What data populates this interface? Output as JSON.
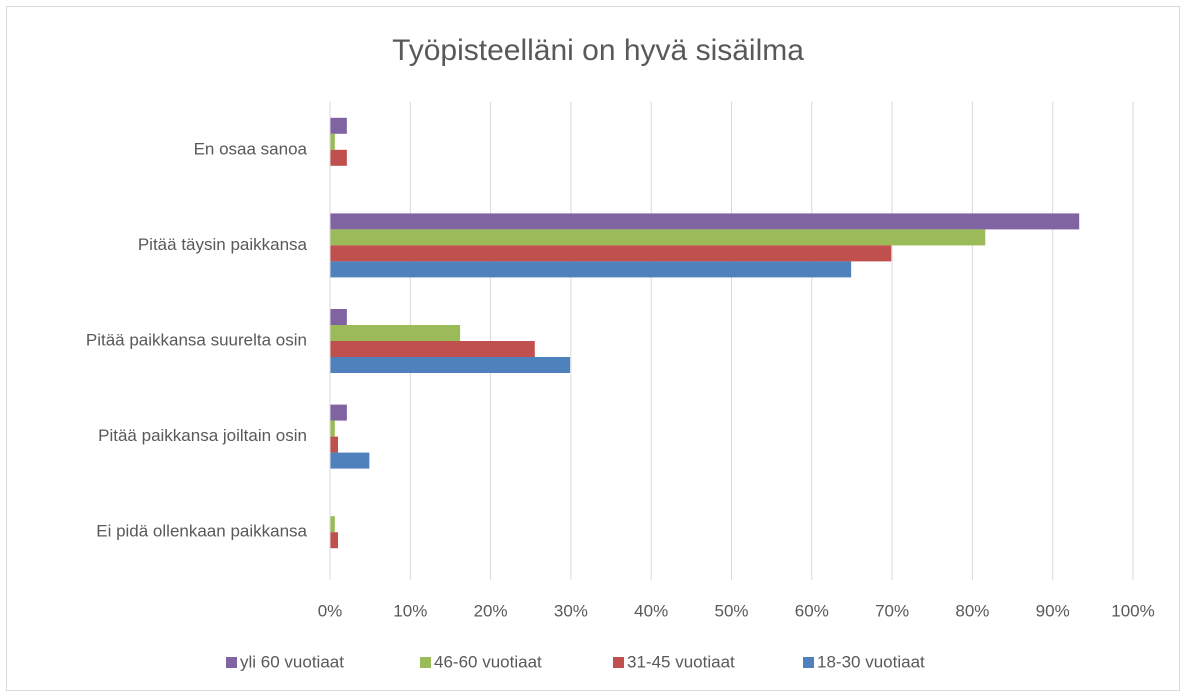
{
  "chart_data": {
    "type": "bar",
    "orientation": "horizontal",
    "title": "Työpisteelläni on hyvä sisäilma",
    "categories": [
      "En osaa sanoa",
      "Pitää täysin paikkansa",
      "Pitää paikkansa suurelta osin",
      "Pitää paikkansa joiltain osin",
      "Ei pidä ollenkaan paikkansa"
    ],
    "series": [
      {
        "name": "yli 60 vuotiaat",
        "color": "#8064a2",
        "values": [
          2.1,
          93.3,
          2.1,
          2.1,
          0
        ]
      },
      {
        "name": "46-60 vuotiaat",
        "color": "#9bbb59",
        "values": [
          0.6,
          81.6,
          16.2,
          0.6,
          0.6
        ]
      },
      {
        "name": "31-45 vuotiaat",
        "color": "#c0504d",
        "values": [
          2.1,
          69.9,
          25.5,
          1.0,
          1.0
        ]
      },
      {
        "name": "18-30 vuotiaat",
        "color": "#4f81bd",
        "values": [
          0,
          64.9,
          29.9,
          4.9,
          0
        ]
      }
    ],
    "xlim": [
      0,
      100
    ],
    "xticks": [
      {
        "value": 0,
        "label": "0%"
      },
      {
        "value": 10,
        "label": "10%"
      },
      {
        "value": 20,
        "label": "20%"
      },
      {
        "value": 30,
        "label": "30%"
      },
      {
        "value": 40,
        "label": "40%"
      },
      {
        "value": 50,
        "label": "50%"
      },
      {
        "value": 60,
        "label": "60%"
      },
      {
        "value": 70,
        "label": "70%"
      },
      {
        "value": 80,
        "label": "80%"
      },
      {
        "value": 90,
        "label": "90%"
      },
      {
        "value": 100,
        "label": "100%"
      }
    ],
    "grid": true,
    "legend": "bottom"
  }
}
